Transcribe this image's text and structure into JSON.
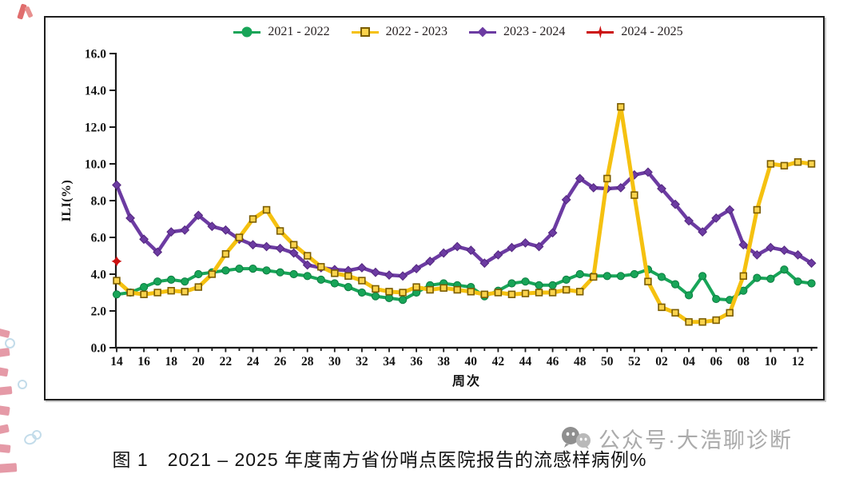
{
  "figure": {
    "legend": [
      {
        "label": "2021 - 2022"
      },
      {
        "label": "2022 - 2023"
      },
      {
        "label": "2023 - 2024"
      },
      {
        "label": "2024 - 2025"
      }
    ],
    "y_axis_title": "ILI(%)",
    "x_axis_title": "周次"
  },
  "chart_data": {
    "type": "line",
    "title": "",
    "xlabel": "周次",
    "ylabel": "ILI(%)",
    "ylim": [
      0,
      16
    ],
    "grid": false,
    "legend_position": "top-center",
    "y_ticks": [
      "0.0",
      "2.0",
      "4.0",
      "6.0",
      "8.0",
      "10.0",
      "12.0",
      "14.0",
      "16.0"
    ],
    "x_tick_labels": [
      "14",
      "16",
      "18",
      "20",
      "22",
      "24",
      "26",
      "28",
      "30",
      "32",
      "34",
      "36",
      "38",
      "40",
      "42",
      "44",
      "46",
      "48",
      "50",
      "52",
      "02",
      "04",
      "06",
      "08",
      "10",
      "12"
    ],
    "x": [
      "14",
      "15",
      "16",
      "17",
      "18",
      "19",
      "20",
      "21",
      "22",
      "23",
      "24",
      "25",
      "26",
      "27",
      "28",
      "29",
      "30",
      "31",
      "32",
      "33",
      "34",
      "35",
      "36",
      "37",
      "38",
      "39",
      "40",
      "41",
      "42",
      "43",
      "44",
      "45",
      "46",
      "47",
      "48",
      "49",
      "50",
      "51",
      "52",
      "01",
      "02",
      "03",
      "04",
      "05",
      "06",
      "07",
      "08",
      "09",
      "10",
      "11",
      "12",
      "13"
    ],
    "series": [
      {
        "name": "2023 - 2024",
        "marker": "diamond",
        "color": "#6C3BA2",
        "marker_fill": "#6C3BA2",
        "marker_stroke": "#53267e",
        "width": 4.5,
        "values": [
          8.85,
          7.05,
          5.9,
          5.2,
          6.3,
          6.4,
          7.2,
          6.6,
          6.4,
          5.9,
          5.6,
          5.5,
          5.4,
          5.15,
          4.5,
          4.35,
          4.25,
          4.2,
          4.35,
          4.1,
          3.95,
          3.9,
          4.3,
          4.7,
          5.15,
          5.5,
          5.3,
          4.6,
          5.05,
          5.45,
          5.7,
          5.5,
          6.25,
          8.05,
          9.2,
          8.7,
          8.65,
          8.7,
          9.4,
          9.55,
          8.65,
          7.8,
          6.9,
          6.3,
          7.05,
          7.5,
          5.6,
          5.05,
          5.45,
          5.3,
          5.05,
          4.6
        ]
      },
      {
        "name": "2021 - 2022",
        "marker": "circle",
        "color": "#18A558",
        "marker_fill": "#18A558",
        "marker_stroke": "#0c7c40",
        "width": 4,
        "values": [
          2.9,
          3.0,
          3.3,
          3.6,
          3.7,
          3.6,
          4.0,
          4.1,
          4.2,
          4.3,
          4.3,
          4.2,
          4.1,
          4.0,
          3.9,
          3.7,
          3.5,
          3.3,
          3.0,
          2.8,
          2.7,
          2.6,
          3.0,
          3.4,
          3.5,
          3.4,
          3.3,
          2.8,
          3.1,
          3.5,
          3.6,
          3.4,
          3.4,
          3.7,
          4.0,
          3.9,
          3.9,
          3.9,
          4.0,
          4.25,
          3.85,
          3.45,
          2.85,
          3.9,
          2.65,
          2.6,
          3.1,
          3.8,
          3.75,
          4.25,
          3.6,
          3.5
        ]
      },
      {
        "name": "2022 - 2023",
        "marker": "square",
        "color": "#F5C110",
        "marker_fill": "#FBD34D",
        "marker_stroke": "#7a5c00",
        "width": 5,
        "values": [
          3.65,
          3.0,
          2.9,
          3.0,
          3.1,
          3.05,
          3.3,
          4.0,
          5.1,
          6.0,
          7.0,
          7.5,
          6.35,
          5.6,
          5.0,
          4.4,
          4.05,
          3.9,
          3.65,
          3.2,
          3.05,
          3.0,
          3.3,
          3.15,
          3.25,
          3.15,
          3.05,
          2.9,
          3.0,
          2.9,
          2.95,
          3.0,
          3.0,
          3.15,
          3.05,
          3.85,
          9.2,
          13.1,
          8.3,
          3.6,
          2.2,
          1.9,
          1.4,
          1.4,
          1.5,
          1.9,
          3.9,
          7.5,
          10.0,
          9.9,
          10.1,
          10.0
        ]
      },
      {
        "name": "2024 - 2025",
        "marker": "star4",
        "color": "#CC1111",
        "marker_fill": "#CC1111",
        "marker_stroke": "#990000",
        "width": 3,
        "points": [
          {
            "week": "14",
            "value": 4.7
          }
        ]
      }
    ],
    "legend_order": [
      "2021 - 2022",
      "2022 - 2023",
      "2023 - 2024",
      "2024 - 2025"
    ]
  },
  "caption": "图 1　2021 – 2025 年度南方省份哨点医院报告的流感样病例%",
  "watermark": {
    "text": "公众号·大浩聊诊断"
  }
}
